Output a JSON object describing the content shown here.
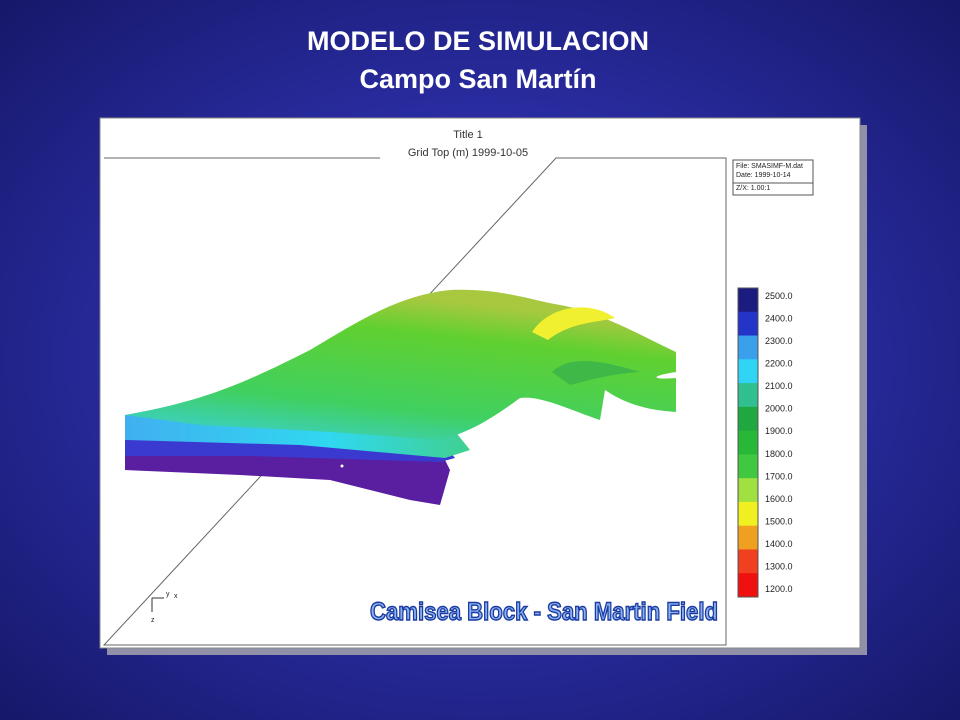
{
  "header": {
    "title": "MODELO DE SIMULACION",
    "subtitle": "Campo San Martín"
  },
  "figure": {
    "title": "Title 1",
    "subtitle": "Grid Top (m) 1999-10-05",
    "info": [
      "File: SMASIMF-M.dat",
      "Date: 1999-10-14",
      "Z/X: 1.00:1"
    ],
    "scale_labels": [
      "2500.0",
      "2400.0",
      "2300.0",
      "2200.0",
      "2100.0",
      "2000.0",
      "1900.0",
      "1800.0",
      "1700.0",
      "1600.0",
      "1500.0",
      "1400.0",
      "1300.0",
      "1200.0"
    ],
    "axes": [
      "y",
      "x",
      "z"
    ],
    "caption": "Camisea Block - San Martin Field"
  }
}
